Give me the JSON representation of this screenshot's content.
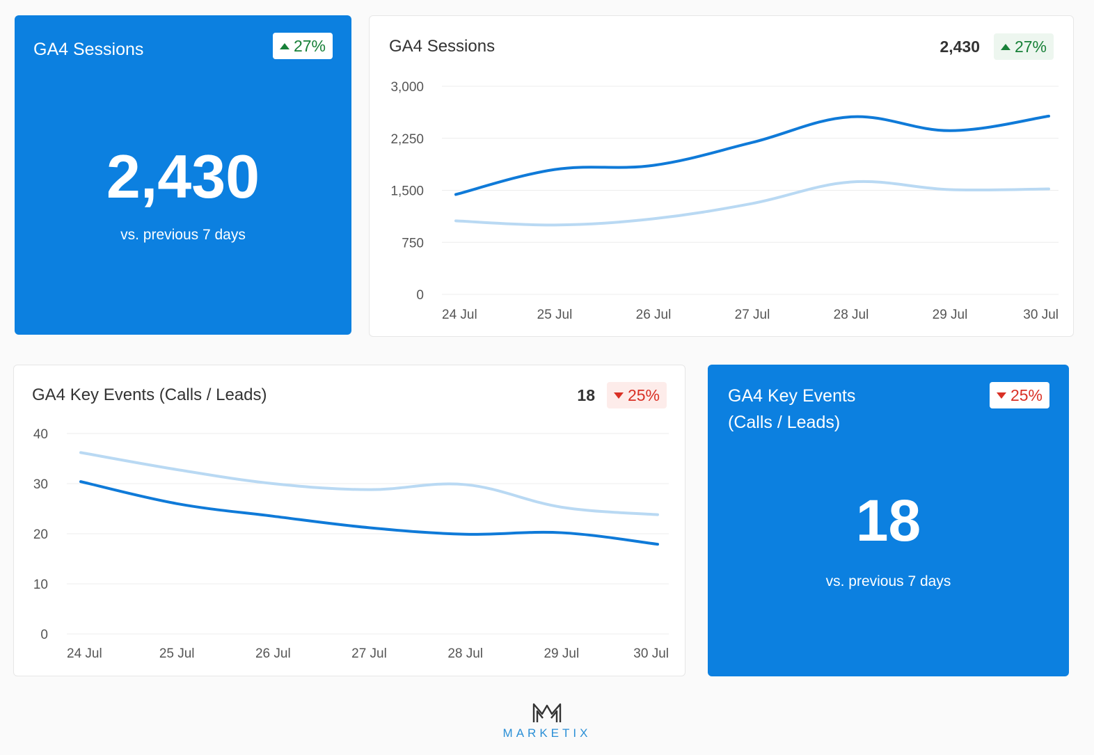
{
  "colors": {
    "card_blue": "#0c80e0",
    "current_line": "#0f7ad8",
    "previous_line": "#b9d9f3",
    "up_green": "#188038",
    "down_red": "#d93025"
  },
  "kpi_sessions": {
    "title": "GA4 Sessions",
    "change": "27%",
    "direction": "up",
    "value": "2,430",
    "subtitle": "vs. previous 7 days"
  },
  "kpi_key_events": {
    "title_line1": "GA4 Key Events",
    "title_line2": "(Calls / Leads)",
    "change": "25%",
    "direction": "down",
    "value": "18",
    "subtitle": "vs. previous 7 days"
  },
  "chart_sessions_header": {
    "title": "GA4 Sessions",
    "value": "2,430",
    "change": "27%"
  },
  "chart_key_events_header": {
    "title": "GA4 Key Events (Calls / Leads)",
    "value": "18",
    "change": "25%"
  },
  "footer": {
    "brand": "MARKETIX",
    "logo_icon": "marketix-m-logo-icon"
  },
  "chart_data": [
    {
      "type": "line",
      "title": "GA4 Sessions",
      "categories": [
        "24 Jul",
        "25 Jul",
        "26 Jul",
        "27 Jul",
        "28 Jul",
        "29 Jul",
        "30 Jul"
      ],
      "ylim": [
        0,
        3000
      ],
      "yticks": [
        0,
        750,
        1500,
        2250,
        3000
      ],
      "ytick_labels": [
        "0",
        "750",
        "1,500",
        "2,250",
        "3,000"
      ],
      "grid": true,
      "series": [
        {
          "role": "current",
          "values": [
            1440,
            1800,
            1860,
            2190,
            2560,
            2360,
            2570
          ]
        },
        {
          "role": "previous",
          "values": [
            1060,
            1000,
            1090,
            1310,
            1620,
            1510,
            1520
          ]
        }
      ]
    },
    {
      "type": "line",
      "title": "GA4 Key Events (Calls / Leads)",
      "categories": [
        "24 Jul",
        "25 Jul",
        "26 Jul",
        "27 Jul",
        "28 Jul",
        "29 Jul",
        "30 Jul"
      ],
      "ylim": [
        0,
        40
      ],
      "yticks": [
        0,
        10,
        20,
        30,
        40
      ],
      "ytick_labels": [
        "0",
        "10",
        "20",
        "30",
        "40"
      ],
      "grid": true,
      "series": [
        {
          "role": "current",
          "values": [
            30.4,
            26,
            23.5,
            21.2,
            19.9,
            20.2,
            17.9
          ]
        },
        {
          "role": "previous",
          "values": [
            36.2,
            32.8,
            30,
            28.8,
            29.8,
            25.3,
            23.8
          ]
        }
      ]
    }
  ]
}
